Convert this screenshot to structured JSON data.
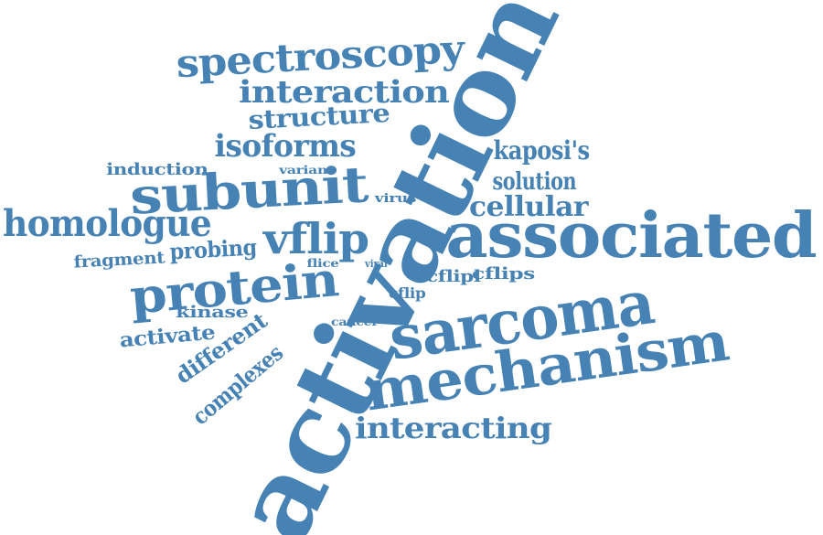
{
  "color": "#4682b4",
  "words": [
    {
      "key": "activation",
      "text": "activation"
    },
    {
      "key": "associated",
      "text": "associated"
    },
    {
      "key": "sarcoma",
      "text": "sarcoma"
    },
    {
      "key": "mechanism",
      "text": "mechanism"
    },
    {
      "key": "spectroscopy",
      "text": "spectroscopy"
    },
    {
      "key": "subunit",
      "text": "subunit"
    },
    {
      "key": "protein",
      "text": "protein"
    },
    {
      "key": "homologue",
      "text": "homologue"
    },
    {
      "key": "vflip",
      "text": "vflip"
    },
    {
      "key": "interaction",
      "text": "interaction"
    },
    {
      "key": "isoforms",
      "text": "isoforms"
    },
    {
      "key": "cellular",
      "text": "cellular"
    },
    {
      "key": "interacting",
      "text": "interacting"
    },
    {
      "key": "structure",
      "text": "structure"
    },
    {
      "key": "kaposis",
      "text": "kaposi's"
    },
    {
      "key": "solution",
      "text": "solution"
    },
    {
      "key": "probing",
      "text": "probing"
    },
    {
      "key": "different",
      "text": "different"
    },
    {
      "key": "complexes",
      "text": "complexes"
    },
    {
      "key": "activate",
      "text": "activate"
    },
    {
      "key": "induction",
      "text": "induction"
    },
    {
      "key": "fragment",
      "text": "fragment"
    },
    {
      "key": "cflips",
      "text": "cflips"
    },
    {
      "key": "cflipl",
      "text": "cflipl"
    },
    {
      "key": "kinase",
      "text": "kinase"
    },
    {
      "key": "cflip",
      "text": "cflip"
    },
    {
      "key": "variant",
      "text": "variant"
    },
    {
      "key": "virus",
      "text": "virus"
    },
    {
      "key": "flice",
      "text": "flice"
    },
    {
      "key": "viral",
      "text": "viral"
    },
    {
      "key": "cancer",
      "text": "cancer"
    }
  ]
}
